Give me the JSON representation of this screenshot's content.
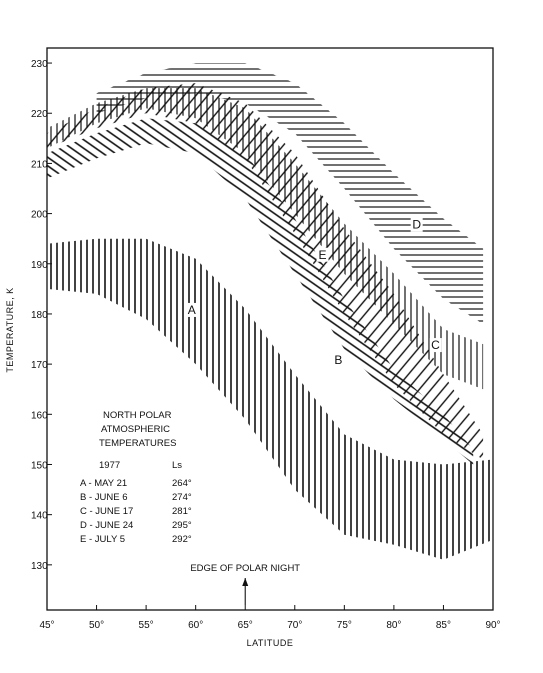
{
  "chart_data": {
    "type": "area",
    "title": "",
    "xlabel": "LATITUDE",
    "ylabel": "TEMPERATURE, K",
    "xlim": [
      45,
      90
    ],
    "ylim": [
      121,
      233
    ],
    "x_ticks": [
      "45°",
      "50°",
      "55°",
      "60°",
      "65°",
      "70°",
      "75°",
      "80°",
      "85°",
      "90°"
    ],
    "y_ticks": [
      "130",
      "140",
      "150",
      "160",
      "170",
      "180",
      "190",
      "200",
      "210",
      "220",
      "230"
    ],
    "grid": false,
    "annotation": {
      "text": "EDGE OF POLAR NIGHT",
      "x": 65
    },
    "legend": {
      "title": [
        "NORTH POLAR",
        "ATMOSPHERIC",
        "TEMPERATURES"
      ],
      "year": "1977",
      "ls_header": "Ls",
      "entries": [
        {
          "label": "A - MAY 21",
          "ls": "264°"
        },
        {
          "label": "B - JUNE 6",
          "ls": "274°"
        },
        {
          "label": "C - JUNE 17",
          "ls": "281°"
        },
        {
          "label": "D - JUNE 24",
          "ls": "295°"
        },
        {
          "label": "E - JULY 5",
          "ls": "292°"
        }
      ]
    },
    "series": [
      {
        "name": "A",
        "x": [
          45,
          50,
          55,
          60,
          65,
          70,
          75,
          80,
          85,
          90
        ],
        "upper": [
          194,
          195,
          195,
          191,
          181,
          168,
          156,
          151,
          150,
          151
        ],
        "lower": [
          185,
          184,
          179,
          170,
          159,
          145,
          136,
          134,
          131,
          135
        ]
      },
      {
        "name": "B",
        "x": [
          45,
          50,
          55,
          60,
          65,
          70,
          75,
          80,
          85,
          88
        ],
        "upper": [
          212,
          216,
          219,
          218,
          212,
          199,
          183,
          169,
          160,
          153
        ],
        "lower": [
          207,
          211,
          214,
          212,
          203,
          188,
          173,
          163,
          155,
          150
        ]
      },
      {
        "name": "C",
        "x": [
          45,
          50,
          55,
          60,
          65,
          70,
          75,
          80,
          85,
          89
        ],
        "upper": [
          217,
          222,
          225,
          225,
          221,
          210,
          198,
          188,
          177,
          174
        ],
        "lower": [
          213,
          218,
          221,
          219,
          212,
          200,
          188,
          178,
          168,
          165
        ]
      },
      {
        "name": "D",
        "x": [
          50,
          55,
          60,
          65,
          70,
          75,
          80,
          85,
          89
        ],
        "upper": [
          224,
          228,
          230,
          230,
          226,
          218,
          208,
          199,
          193
        ],
        "lower": [
          220,
          223,
          224,
          222,
          216,
          205,
          193,
          183,
          178
        ]
      },
      {
        "name": "E",
        "x": [
          45,
          50,
          55,
          60,
          65,
          70,
          75,
          80,
          85,
          89
        ],
        "upper": [
          216,
          221,
          225,
          226,
          222,
          212,
          197,
          184,
          168,
          156
        ],
        "lower": [
          213,
          217,
          220,
          218,
          211,
          196,
          180,
          166,
          156,
          151
        ]
      }
    ],
    "point_labels": [
      {
        "text": "A",
        "x": 59.6,
        "y": 180
      },
      {
        "text": "B",
        "x": 74.4,
        "y": 170
      },
      {
        "text": "C",
        "x": 84.2,
        "y": 173
      },
      {
        "text": "D",
        "x": 82.3,
        "y": 197
      },
      {
        "text": "E",
        "x": 72.8,
        "y": 191
      }
    ]
  }
}
